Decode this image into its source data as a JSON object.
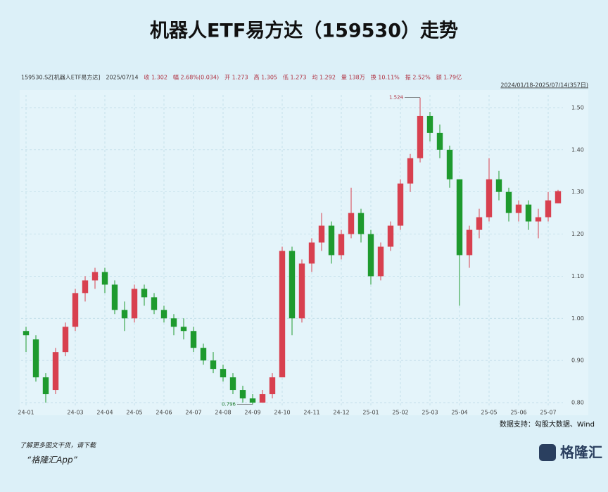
{
  "chart_data": {
    "type": "candlestick",
    "title": "机器人ETF易方达（159530）走势",
    "info": [
      "159530.SZ[机器人ETF易方达]",
      "2025/07/14",
      "收 1.302",
      "幅 2.68%(0.034)",
      "开 1.273",
      "高 1.305",
      "低 1.273",
      "均 1.292",
      "量 138万",
      "换 10.11%",
      "振 2.52%",
      "额 1.79亿"
    ],
    "range_label": "2024/01/18-2025/07/14(357日)",
    "categories": [
      "24-01",
      null,
      null,
      null,
      null,
      "24-03",
      null,
      null,
      "24-04",
      null,
      null,
      "24-05",
      null,
      null,
      "24-06",
      null,
      null,
      "24-07",
      null,
      null,
      "24-08",
      null,
      null,
      "24-09",
      null,
      null,
      "24-10",
      null,
      null,
      "24-11",
      null,
      null,
      "24-12",
      null,
      null,
      "25-01",
      null,
      null,
      "25-02",
      null,
      null,
      "25-03",
      null,
      null,
      "25-04",
      null,
      null,
      "25-05",
      null,
      null,
      "25-06",
      null,
      null,
      "25-07",
      null
    ],
    "open": [
      0.97,
      0.95,
      0.86,
      0.83,
      0.92,
      0.98,
      1.06,
      1.09,
      1.11,
      1.08,
      1.02,
      1.0,
      1.07,
      1.05,
      1.02,
      1.0,
      0.98,
      0.97,
      0.93,
      0.9,
      0.88,
      0.86,
      0.83,
      0.81,
      0.8,
      0.82,
      0.86,
      1.16,
      1.0,
      1.13,
      1.18,
      1.22,
      1.15,
      1.2,
      1.25,
      1.2,
      1.1,
      1.17,
      1.22,
      1.32,
      1.38,
      1.48,
      1.44,
      1.4,
      1.33,
      1.15,
      1.21,
      1.24,
      1.33,
      1.3,
      1.25,
      1.27,
      1.23,
      1.24,
      1.273
    ],
    "high": [
      0.98,
      0.96,
      0.87,
      0.93,
      0.99,
      1.07,
      1.1,
      1.12,
      1.12,
      1.09,
      1.04,
      1.08,
      1.08,
      1.06,
      1.03,
      1.01,
      1.0,
      0.98,
      0.94,
      0.92,
      0.89,
      0.87,
      0.84,
      0.82,
      0.83,
      0.87,
      1.17,
      1.17,
      1.14,
      1.19,
      1.25,
      1.23,
      1.21,
      1.31,
      1.26,
      1.21,
      1.18,
      1.23,
      1.33,
      1.39,
      1.524,
      1.49,
      1.46,
      1.41,
      1.33,
      1.22,
      1.26,
      1.38,
      1.35,
      1.31,
      1.28,
      1.28,
      1.26,
      1.3,
      1.305
    ],
    "low": [
      0.92,
      0.85,
      0.8,
      0.82,
      0.91,
      0.97,
      1.04,
      1.07,
      1.06,
      1.01,
      0.97,
      0.99,
      1.03,
      1.01,
      0.99,
      0.96,
      0.95,
      0.92,
      0.89,
      0.87,
      0.85,
      0.82,
      0.8,
      0.796,
      0.8,
      0.81,
      0.86,
      0.96,
      0.99,
      1.11,
      1.16,
      1.13,
      1.14,
      1.19,
      1.18,
      1.08,
      1.09,
      1.16,
      1.21,
      1.3,
      1.37,
      1.42,
      1.38,
      1.31,
      1.03,
      1.12,
      1.19,
      1.23,
      1.28,
      1.23,
      1.23,
      1.21,
      1.19,
      1.23,
      1.273
    ],
    "close": [
      0.96,
      0.86,
      0.82,
      0.92,
      0.98,
      1.06,
      1.09,
      1.11,
      1.08,
      1.02,
      1.0,
      1.07,
      1.05,
      1.02,
      1.0,
      0.98,
      0.97,
      0.93,
      0.9,
      0.88,
      0.86,
      0.83,
      0.81,
      0.8,
      0.82,
      0.86,
      1.16,
      1.0,
      1.13,
      1.18,
      1.22,
      1.15,
      1.2,
      1.25,
      1.2,
      1.1,
      1.17,
      1.22,
      1.32,
      1.38,
      1.48,
      1.44,
      1.4,
      1.33,
      1.15,
      1.21,
      1.24,
      1.33,
      1.3,
      1.25,
      1.27,
      1.23,
      1.24,
      1.28,
      1.302
    ],
    "up_color": "#d8404f",
    "down_color": "#1e9a2e",
    "ylim": [
      0.79,
      1.53
    ],
    "yticks": [
      {
        "value": 0.8,
        "label": "0.80"
      },
      {
        "value": 0.9,
        "label": "0.90"
      },
      {
        "value": 1.0,
        "label": "1.00"
      },
      {
        "value": 1.1,
        "label": "1.10"
      },
      {
        "value": 1.2,
        "label": "1.20"
      },
      {
        "value": 1.3,
        "label": "1.30"
      },
      {
        "value": 1.4,
        "label": "1.40"
      },
      {
        "value": 1.5,
        "label": "1.50"
      }
    ],
    "grid": true,
    "annotations": [
      {
        "text": "1.524",
        "index": 40
      },
      {
        "text": "0.796",
        "index": 23
      }
    ],
    "source": "数据支持：勾股大数据、Wind",
    "footer": {
      "line1": "了解更多图文干货，请下载",
      "line2": "“格隆汇App”",
      "logo": "格隆汇"
    }
  }
}
